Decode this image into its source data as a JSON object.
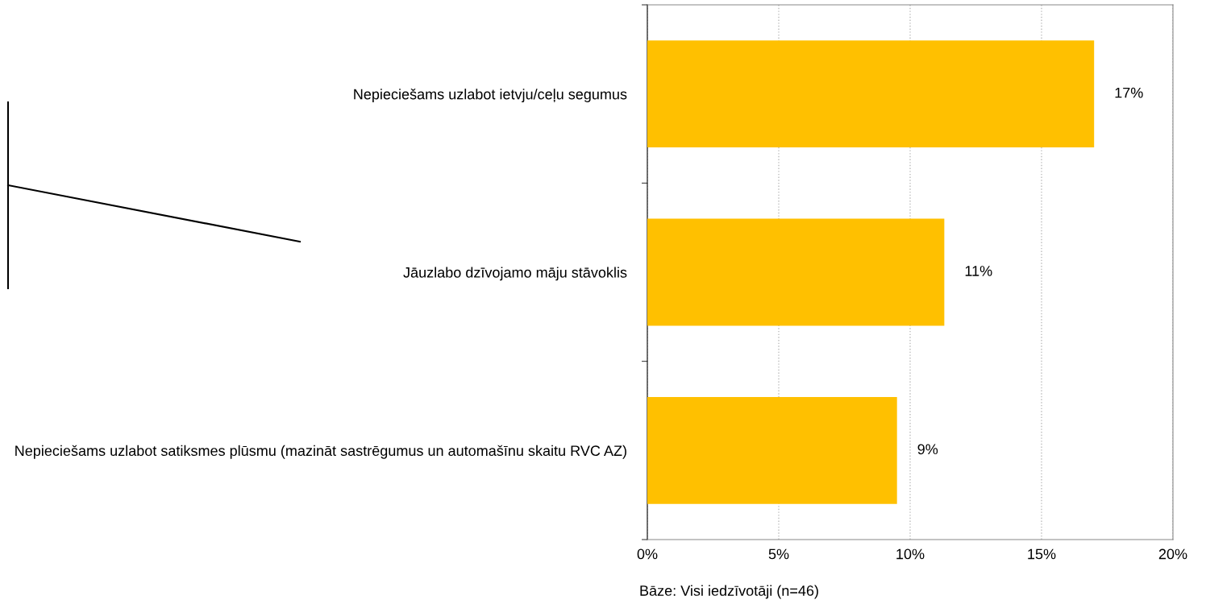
{
  "chart_data": {
    "type": "bar",
    "orientation": "horizontal",
    "categories": [
      "Nepieciešams uzlabot ietvju/ceļu segumus",
      "Jāuzlabo dzīvojamo māju stāvoklis",
      "Nepieciešams uzlabot satiksmes plūsmu (mazināt sastrēgumus un automašīnu skaitu RVC AZ)"
    ],
    "values": [
      17.0,
      11.3,
      9.5
    ],
    "value_labels": [
      "17%",
      "11%",
      "9%"
    ],
    "color": "#ffc000",
    "xlim": [
      0,
      20
    ],
    "xticks": [
      {
        "value": 0,
        "label": "0%"
      },
      {
        "value": 5,
        "label": "5%"
      },
      {
        "value": 10,
        "label": "10%"
      },
      {
        "value": 15,
        "label": "15%"
      },
      {
        "value": 20,
        "label": "20%"
      }
    ],
    "grid": "x",
    "annotations": [
      "Bāze: Visi iedzīvotāji (n=46)"
    ]
  }
}
